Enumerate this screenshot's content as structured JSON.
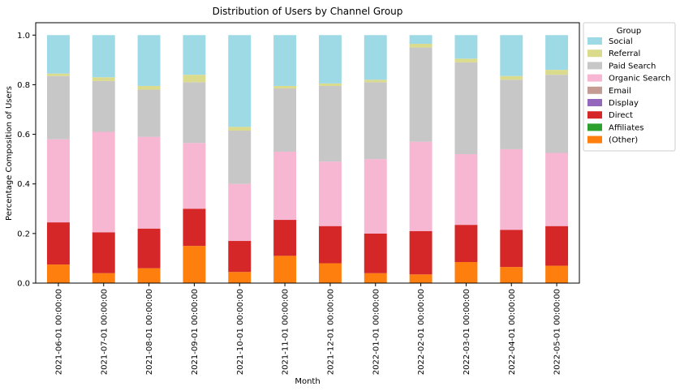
{
  "chart_data": {
    "type": "bar",
    "stacked": true,
    "title": "Distribution of Users by Channel Group",
    "xlabel": "Month",
    "ylabel": "Percentage Composition of Users",
    "ylim": [
      0,
      1.05
    ],
    "yticks": [
      0.0,
      0.2,
      0.4,
      0.6,
      0.8,
      1.0
    ],
    "ytick_labels": [
      "0.0",
      "0.2",
      "0.4",
      "0.6",
      "0.8",
      "1.0"
    ],
    "grid": false,
    "legend_title": "Group",
    "legend_placement": "outside-top-right",
    "categories": [
      "2021-06-01 00:00:00",
      "2021-07-01 00:00:00",
      "2021-08-01 00:00:00",
      "2021-09-01 00:00:00",
      "2021-10-01 00:00:00",
      "2021-11-01 00:00:00",
      "2021-12-01 00:00:00",
      "2022-01-01 00:00:00",
      "2022-02-01 00:00:00",
      "2022-03-01 00:00:00",
      "2022-04-01 00:00:00",
      "2022-05-01 00:00:00"
    ],
    "series": [
      {
        "name": "(Other)",
        "color": "#ff7f0e",
        "values": [
          0.075,
          0.04,
          0.06,
          0.15,
          0.045,
          0.11,
          0.08,
          0.04,
          0.035,
          0.085,
          0.065,
          0.07
        ]
      },
      {
        "name": "Affiliates",
        "color": "#2ca02c",
        "values": [
          0,
          0,
          0,
          0,
          0,
          0,
          0,
          0,
          0,
          0,
          0,
          0
        ]
      },
      {
        "name": "Direct",
        "color": "#d62728",
        "values": [
          0.17,
          0.165,
          0.16,
          0.15,
          0.125,
          0.145,
          0.15,
          0.16,
          0.175,
          0.15,
          0.15,
          0.16
        ]
      },
      {
        "name": "Display",
        "color": "#9467bd",
        "values": [
          0,
          0,
          0,
          0,
          0,
          0,
          0,
          0,
          0,
          0,
          0,
          0
        ]
      },
      {
        "name": "Email",
        "color": "#c49c94",
        "values": [
          0,
          0,
          0,
          0,
          0,
          0,
          0,
          0,
          0,
          0,
          0,
          0
        ]
      },
      {
        "name": "Organic Search",
        "color": "#f7b6d2",
        "values": [
          0.335,
          0.405,
          0.37,
          0.265,
          0.23,
          0.275,
          0.26,
          0.3,
          0.36,
          0.285,
          0.325,
          0.295
        ]
      },
      {
        "name": "Paid Search",
        "color": "#c7c7c7",
        "values": [
          0.255,
          0.205,
          0.19,
          0.245,
          0.215,
          0.255,
          0.305,
          0.31,
          0.38,
          0.37,
          0.28,
          0.315
        ]
      },
      {
        "name": "Referral",
        "color": "#dbdb8d",
        "values": [
          0.01,
          0.015,
          0.015,
          0.03,
          0.015,
          0.01,
          0.01,
          0.01,
          0.015,
          0.015,
          0.015,
          0.02
        ]
      },
      {
        "name": "Social",
        "color": "#9edae5",
        "values": [
          0.155,
          0.17,
          0.205,
          0.16,
          0.37,
          0.205,
          0.195,
          0.18,
          0.035,
          0.095,
          0.165,
          0.14
        ]
      }
    ]
  }
}
